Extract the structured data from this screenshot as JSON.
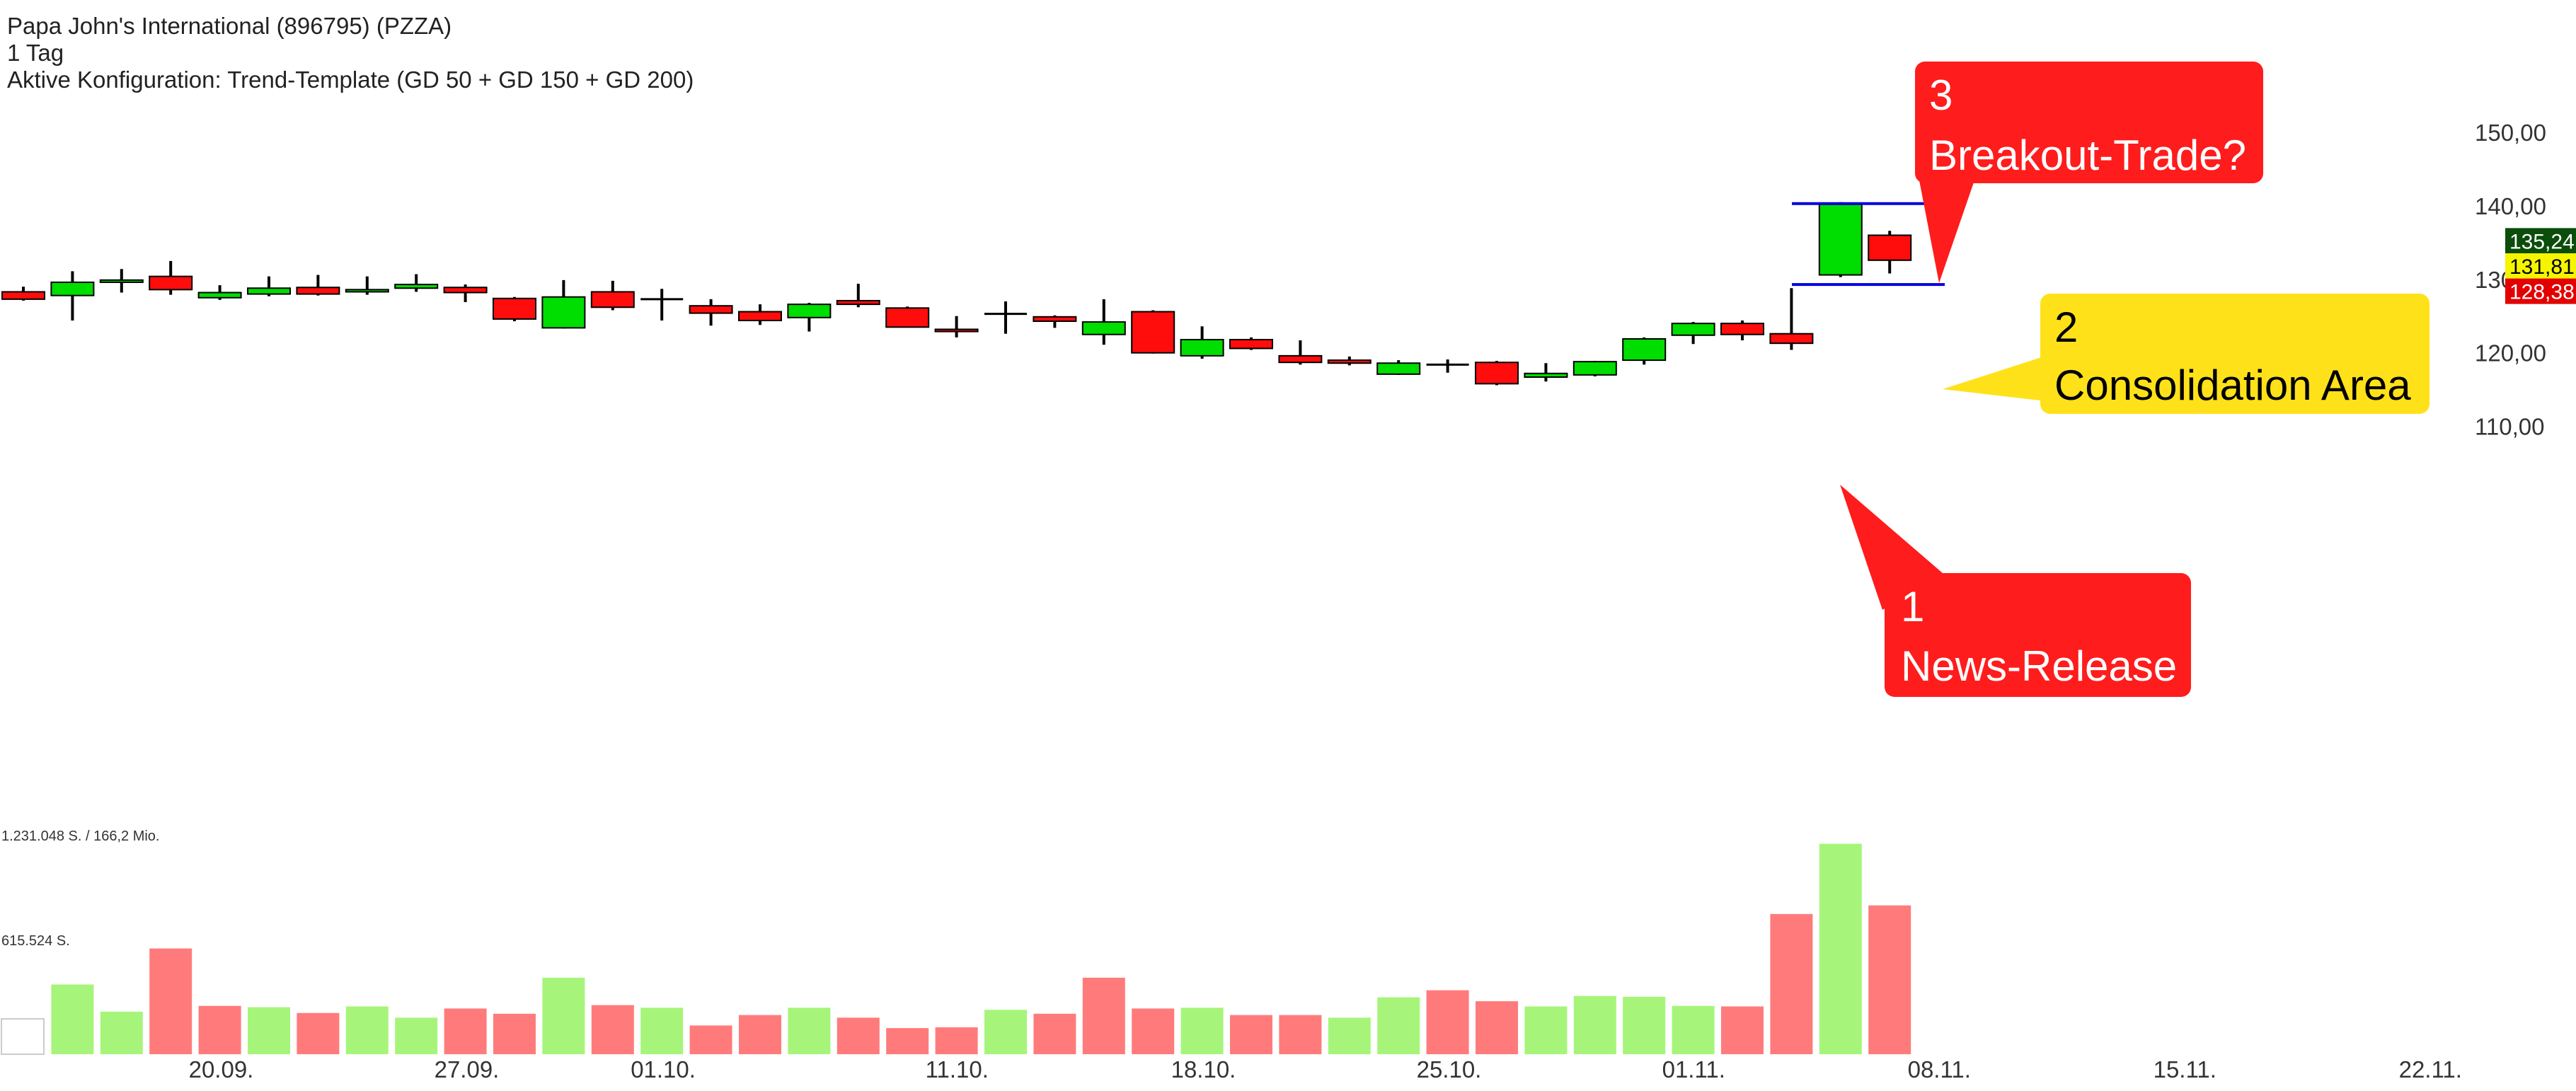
{
  "header": {
    "title": "Papa John's International (896795) (PZZA)",
    "interval": "1 Tag",
    "config": "Aktive Konfiguration: Trend-Template (GD 50 + GD 150 + GD 200)"
  },
  "volume_labels": {
    "top": "1.231.048 S. / 166,2 Mio.",
    "mid": "615.524 S."
  },
  "price_badges": [
    {
      "label": "135,24",
      "value": 135.24,
      "bg": "#0b4d0b",
      "fg": "#ffffff"
    },
    {
      "label": "131,81",
      "value": 131.81,
      "bg": "#f5f500",
      "fg": "#000000"
    },
    {
      "label": "128,38",
      "value": 128.38,
      "bg": "#e30000",
      "fg": "#ffffff"
    }
  ],
  "annotations": [
    {
      "number": "1",
      "text": "News-Release",
      "color": "#ff1c1c",
      "text_color": "#ffffff"
    },
    {
      "number": "2",
      "text": "Consolidation Area",
      "color": "#ffe11a",
      "text_color": "#000000"
    },
    {
      "number": "3",
      "text": "Breakout-Trade?",
      "color": "#ff1c1c",
      "text_color": "#ffffff"
    }
  ],
  "colors": {
    "up": "#00dd00",
    "down": "#ff0d0d",
    "vol_up": "#a6f57a",
    "vol_down": "#ff7b7b",
    "level_line": "#0000dd"
  },
  "chart_data": {
    "type": "candlestick",
    "price_axis": {
      "ticks": [
        {
          "value": 150,
          "label": "150,00"
        },
        {
          "value": 140,
          "label": "140,00"
        },
        {
          "value": 130,
          "label": "130,00"
        },
        {
          "value": 120,
          "label": "120,00"
        },
        {
          "value": 110,
          "label": "110,00"
        }
      ]
    },
    "x_ticks": [
      {
        "label": "20.09.",
        "index": 4
      },
      {
        "label": "27.09.",
        "index": 9
      },
      {
        "label": "01.10.",
        "index": 13
      },
      {
        "label": "11.10.",
        "index": 19
      },
      {
        "label": "18.10.",
        "index": 24
      },
      {
        "label": "25.10.",
        "index": 29
      },
      {
        "label": "01.11.",
        "index": 34
      },
      {
        "label": "08.11.",
        "index": 39
      },
      {
        "label": "15.11.",
        "index": 44
      },
      {
        "label": "22.11.",
        "index": 49
      }
    ],
    "levels": [
      140.3,
      129.3
    ],
    "candles": [
      {
        "o": 128.3,
        "h": 129.0,
        "l": 127.1,
        "c": 127.3
      },
      {
        "o": 127.8,
        "h": 131.1,
        "l": 124.4,
        "c": 129.6
      },
      {
        "o": 129.6,
        "h": 131.4,
        "l": 128.2,
        "c": 129.9
      },
      {
        "o": 130.4,
        "h": 132.5,
        "l": 127.9,
        "c": 128.6
      },
      {
        "o": 127.5,
        "h": 129.2,
        "l": 127.2,
        "c": 128.2
      },
      {
        "o": 128.0,
        "h": 130.4,
        "l": 127.7,
        "c": 128.8
      },
      {
        "o": 128.9,
        "h": 130.6,
        "l": 127.8,
        "c": 128.0
      },
      {
        "o": 128.3,
        "h": 130.4,
        "l": 127.9,
        "c": 128.6
      },
      {
        "o": 128.8,
        "h": 130.7,
        "l": 128.3,
        "c": 129.3
      },
      {
        "o": 128.9,
        "h": 129.3,
        "l": 126.9,
        "c": 128.2
      },
      {
        "o": 127.4,
        "h": 127.6,
        "l": 124.3,
        "c": 124.6
      },
      {
        "o": 123.4,
        "h": 129.9,
        "l": 123.3,
        "c": 127.6
      },
      {
        "o": 128.3,
        "h": 129.8,
        "l": 125.8,
        "c": 126.2
      },
      {
        "o": 127.3,
        "h": 128.7,
        "l": 124.4,
        "c": 127.3
      },
      {
        "o": 126.4,
        "h": 127.3,
        "l": 123.7,
        "c": 125.4
      },
      {
        "o": 125.6,
        "h": 126.6,
        "l": 123.8,
        "c": 124.4
      },
      {
        "o": 124.8,
        "h": 126.8,
        "l": 122.9,
        "c": 126.6
      },
      {
        "o": 127.1,
        "h": 129.4,
        "l": 126.2,
        "c": 126.6
      },
      {
        "o": 126.1,
        "h": 126.3,
        "l": 123.5,
        "c": 123.5
      },
      {
        "o": 123.2,
        "h": 125.0,
        "l": 122.1,
        "c": 122.9
      },
      {
        "o": 125.3,
        "h": 127.0,
        "l": 122.6,
        "c": 125.3
      },
      {
        "o": 124.9,
        "h": 125.1,
        "l": 123.4,
        "c": 124.3
      },
      {
        "o": 122.5,
        "h": 127.3,
        "l": 121.1,
        "c": 124.2
      },
      {
        "o": 125.6,
        "h": 125.8,
        "l": 119.9,
        "c": 120.0
      },
      {
        "o": 119.6,
        "h": 123.6,
        "l": 119.2,
        "c": 121.8
      },
      {
        "o": 121.8,
        "h": 122.1,
        "l": 120.4,
        "c": 120.6
      },
      {
        "o": 119.6,
        "h": 121.7,
        "l": 118.4,
        "c": 118.7
      },
      {
        "o": 119.0,
        "h": 119.5,
        "l": 118.3,
        "c": 118.6
      },
      {
        "o": 117.1,
        "h": 119.0,
        "l": 117.0,
        "c": 118.6
      },
      {
        "o": 118.4,
        "h": 119.1,
        "l": 117.3,
        "c": 118.4
      },
      {
        "o": 118.7,
        "h": 118.9,
        "l": 115.6,
        "c": 115.8
      },
      {
        "o": 116.7,
        "h": 118.6,
        "l": 116.1,
        "c": 117.2
      },
      {
        "o": 117.0,
        "h": 118.9,
        "l": 116.8,
        "c": 118.8
      },
      {
        "o": 119.0,
        "h": 122.1,
        "l": 118.4,
        "c": 121.9
      },
      {
        "o": 122.4,
        "h": 124.2,
        "l": 121.2,
        "c": 124.0
      },
      {
        "o": 124.0,
        "h": 124.4,
        "l": 121.7,
        "c": 122.5
      },
      {
        "o": 122.6,
        "h": 128.8,
        "l": 120.4,
        "c": 121.3
      },
      {
        "o": 130.6,
        "h": 140.5,
        "l": 130.3,
        "c": 140.2
      },
      {
        "o": 136.0,
        "h": 136.6,
        "l": 130.8,
        "c": 132.6
      }
    ],
    "volume": [
      {
        "v": 0,
        "up": true
      },
      {
        "v": 267000,
        "up": true
      },
      {
        "v": 163000,
        "up": true
      },
      {
        "v": 405000,
        "up": false
      },
      {
        "v": 185000,
        "up": false
      },
      {
        "v": 180000,
        "up": true
      },
      {
        "v": 158000,
        "up": false
      },
      {
        "v": 183000,
        "up": true
      },
      {
        "v": 140000,
        "up": true
      },
      {
        "v": 175000,
        "up": false
      },
      {
        "v": 155000,
        "up": false
      },
      {
        "v": 293000,
        "up": true
      },
      {
        "v": 188000,
        "up": false
      },
      {
        "v": 178000,
        "up": true
      },
      {
        "v": 110000,
        "up": false
      },
      {
        "v": 150000,
        "up": false
      },
      {
        "v": 178000,
        "up": true
      },
      {
        "v": 140000,
        "up": false
      },
      {
        "v": 100000,
        "up": false
      },
      {
        "v": 103000,
        "up": false
      },
      {
        "v": 170000,
        "up": true
      },
      {
        "v": 155000,
        "up": false
      },
      {
        "v": 293000,
        "up": false
      },
      {
        "v": 175000,
        "up": false
      },
      {
        "v": 178000,
        "up": true
      },
      {
        "v": 150000,
        "up": false
      },
      {
        "v": 150000,
        "up": false
      },
      {
        "v": 140000,
        "up": true
      },
      {
        "v": 218000,
        "up": true
      },
      {
        "v": 245000,
        "up": false
      },
      {
        "v": 203000,
        "up": false
      },
      {
        "v": 183000,
        "up": true
      },
      {
        "v": 223000,
        "up": true
      },
      {
        "v": 220000,
        "up": true
      },
      {
        "v": 185000,
        "up": true
      },
      {
        "v": 183000,
        "up": false
      },
      {
        "v": 537000,
        "up": false
      },
      {
        "v": 806000,
        "up": true
      },
      {
        "v": 570000,
        "up": false
      }
    ],
    "volume_max_label_value": 1231048
  }
}
